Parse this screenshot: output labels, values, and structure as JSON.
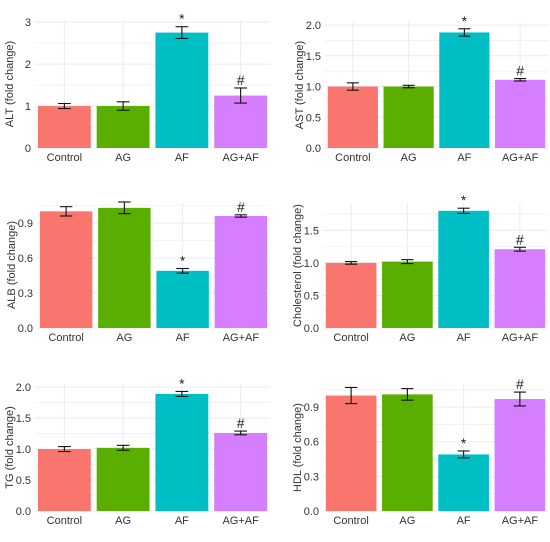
{
  "chart_data": [
    {
      "id": "alt",
      "type": "bar",
      "ylabel": "ALT (fold change)",
      "categories": [
        "Control",
        "AG",
        "AF",
        "AG+AF"
      ],
      "values": [
        1.0,
        1.0,
        2.75,
        1.25
      ],
      "errors": [
        0.06,
        0.1,
        0.14,
        0.18
      ],
      "marks": [
        "",
        "",
        "*",
        "#"
      ],
      "ylim": [
        0,
        3.05
      ],
      "yticks": [
        0,
        1,
        2,
        3
      ],
      "ytick_labels": [
        "0",
        "1",
        "2",
        "3"
      ],
      "grid": true
    },
    {
      "id": "ast",
      "type": "bar",
      "ylabel": "AST (fold change)",
      "categories": [
        "Control",
        "AG",
        "AF",
        "AG+AF"
      ],
      "values": [
        1.0,
        1.0,
        1.88,
        1.11
      ],
      "errors": [
        0.06,
        0.02,
        0.06,
        0.02
      ],
      "marks": [
        "",
        "",
        "*",
        "#"
      ],
      "ylim": [
        0,
        2.05
      ],
      "yticks": [
        0,
        0.5,
        1.0,
        1.5,
        2.0
      ],
      "ytick_labels": [
        "0.0",
        "0.5",
        "1.0",
        "1.5",
        "2.0"
      ],
      "grid": true
    },
    {
      "id": "alb",
      "type": "bar",
      "ylabel": "ALB (fold change)",
      "categories": [
        "Control",
        "AG",
        "AF",
        "AG+AF"
      ],
      "values": [
        1.0,
        1.03,
        0.49,
        0.96
      ],
      "errors": [
        0.04,
        0.05,
        0.02,
        0.01
      ],
      "marks": [
        "",
        "",
        "*",
        "#"
      ],
      "ylim": [
        0,
        1.08
      ],
      "yticks": [
        0,
        0.3,
        0.6,
        0.9
      ],
      "ytick_labels": [
        "0.0",
        "0.3",
        "0.6",
        "0.9"
      ],
      "grid": true
    },
    {
      "id": "cholesterol",
      "type": "bar",
      "ylabel": "Cholesterol (fold change)",
      "categories": [
        "Control",
        "AG",
        "AF",
        "AG+AF"
      ],
      "values": [
        1.0,
        1.02,
        1.8,
        1.21
      ],
      "errors": [
        0.02,
        0.03,
        0.04,
        0.03
      ],
      "marks": [
        "",
        "",
        "*",
        "#"
      ],
      "ylim": [
        0,
        1.92
      ],
      "yticks": [
        0,
        0.5,
        1.0,
        1.5
      ],
      "ytick_labels": [
        "0.0",
        "0.5",
        "1.0",
        "1.5"
      ],
      "grid": true
    },
    {
      "id": "tg",
      "type": "bar",
      "ylabel": "TG (fold change)",
      "categories": [
        "Control",
        "AG",
        "AF",
        "AG+AF"
      ],
      "values": [
        1.0,
        1.02,
        1.89,
        1.26
      ],
      "errors": [
        0.04,
        0.04,
        0.04,
        0.03
      ],
      "marks": [
        "",
        "",
        "*",
        "#"
      ],
      "ylim": [
        0,
        2.05
      ],
      "yticks": [
        0,
        0.5,
        1.0,
        1.5,
        2.0
      ],
      "ytick_labels": [
        "0.0",
        "0.5",
        "1.0",
        "1.5",
        "2.0"
      ],
      "grid": true
    },
    {
      "id": "hdl",
      "type": "bar",
      "ylabel": "HDL (fold change)",
      "categories": [
        "Control",
        "AG",
        "AF",
        "AG+AF"
      ],
      "values": [
        1.0,
        1.01,
        0.49,
        0.97
      ],
      "errors": [
        0.07,
        0.05,
        0.03,
        0.06
      ],
      "marks": [
        "",
        "",
        "*",
        "#"
      ],
      "ylim": [
        0,
        1.1
      ],
      "yticks": [
        0,
        0.3,
        0.6,
        0.9
      ],
      "ytick_labels": [
        "0.0",
        "0.3",
        "0.6",
        "0.9"
      ],
      "grid": true
    }
  ],
  "colors": {
    "bars": [
      "#F8766D",
      "#5AAE00",
      "#00BFC4",
      "#D57EFF"
    ],
    "grid": "#ebebeb",
    "text": "#333333",
    "errorbar": "#111111"
  }
}
